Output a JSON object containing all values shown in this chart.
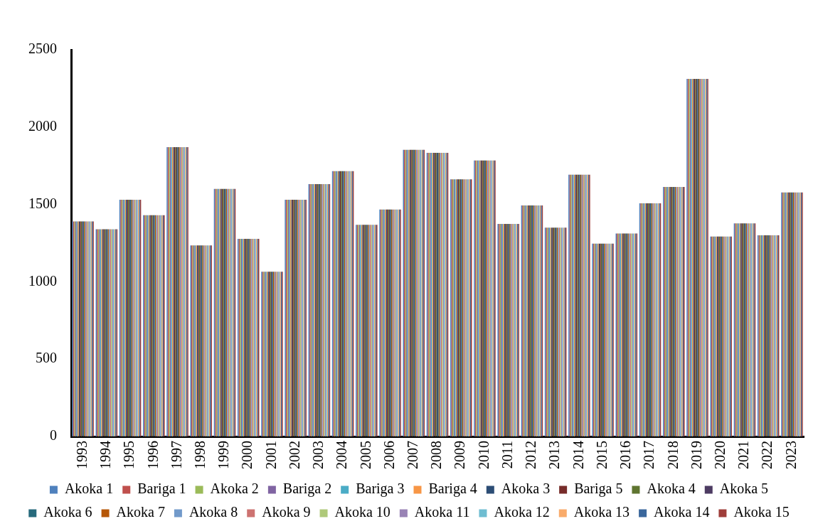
{
  "chart_data": {
    "type": "bar",
    "categories": [
      "1993",
      "1994",
      "1995",
      "1996",
      "1997",
      "1998",
      "1999",
      "2000",
      "2001",
      "2002",
      "2003",
      "2004",
      "2005",
      "2006",
      "2007",
      "2008",
      "2009",
      "2010",
      "2011",
      "2012",
      "2013",
      "2014",
      "2015",
      "2016",
      "2017",
      "2018",
      "2019",
      "2020",
      "2021",
      "2022",
      "2023"
    ],
    "ylim": [
      0,
      2500
    ],
    "yticks": [
      0,
      500,
      1000,
      1500,
      2000,
      2500
    ],
    "grid": false,
    "legend": "bottom",
    "series": [
      {
        "name": "Akoka 1",
        "color": "#4f81bd",
        "values": [
          1390,
          1340,
          1530,
          1430,
          1870,
          1235,
          1600,
          1278,
          1065,
          1530,
          1632,
          1715,
          1368,
          1467,
          1853,
          1834,
          1663,
          1784,
          1374,
          1493,
          1350,
          1692,
          1247,
          1312,
          1507,
          1613,
          2312,
          1292,
          1377,
          1301,
          1578
        ]
      },
      {
        "name": "Bariga 1",
        "color": "#c0504d",
        "values": [
          1390,
          1340,
          1530,
          1430,
          1870,
          1235,
          1600,
          1278,
          1065,
          1530,
          1632,
          1715,
          1368,
          1467,
          1853,
          1834,
          1663,
          1784,
          1374,
          1493,
          1350,
          1692,
          1247,
          1312,
          1507,
          1613,
          2312,
          1292,
          1377,
          1301,
          1578
        ]
      },
      {
        "name": "Akoka 2",
        "color": "#9bbb59",
        "values": [
          1390,
          1340,
          1530,
          1430,
          1870,
          1235,
          1600,
          1278,
          1065,
          1530,
          1632,
          1715,
          1368,
          1467,
          1853,
          1834,
          1663,
          1784,
          1374,
          1493,
          1350,
          1692,
          1247,
          1312,
          1507,
          1613,
          2312,
          1292,
          1377,
          1301,
          1578
        ]
      },
      {
        "name": "Bariga 2",
        "color": "#8064a2",
        "values": [
          1390,
          1340,
          1530,
          1430,
          1870,
          1235,
          1600,
          1278,
          1065,
          1530,
          1632,
          1715,
          1368,
          1467,
          1853,
          1834,
          1663,
          1784,
          1374,
          1493,
          1350,
          1692,
          1247,
          1312,
          1507,
          1613,
          2312,
          1292,
          1377,
          1301,
          1578
        ]
      },
      {
        "name": "Bariga 3",
        "color": "#4bacc6",
        "values": [
          1390,
          1340,
          1530,
          1430,
          1870,
          1235,
          1600,
          1278,
          1065,
          1530,
          1632,
          1715,
          1368,
          1467,
          1853,
          1834,
          1663,
          1784,
          1374,
          1493,
          1350,
          1692,
          1247,
          1312,
          1507,
          1613,
          2312,
          1292,
          1377,
          1301,
          1578
        ]
      },
      {
        "name": "Bariga 4",
        "color": "#f79646",
        "values": [
          1390,
          1340,
          1530,
          1430,
          1870,
          1235,
          1600,
          1278,
          1065,
          1530,
          1632,
          1715,
          1368,
          1467,
          1853,
          1834,
          1663,
          1784,
          1374,
          1493,
          1350,
          1692,
          1247,
          1312,
          1507,
          1613,
          2312,
          1292,
          1377,
          1301,
          1578
        ]
      },
      {
        "name": "Akoka 3",
        "color": "#2c4d75",
        "values": [
          1390,
          1340,
          1530,
          1430,
          1870,
          1235,
          1600,
          1278,
          1065,
          1530,
          1632,
          1715,
          1368,
          1467,
          1853,
          1834,
          1663,
          1784,
          1374,
          1493,
          1350,
          1692,
          1247,
          1312,
          1507,
          1613,
          2312,
          1292,
          1377,
          1301,
          1578
        ]
      },
      {
        "name": "Bariga 5",
        "color": "#772c2a",
        "values": [
          1390,
          1340,
          1530,
          1430,
          1870,
          1235,
          1600,
          1278,
          1065,
          1530,
          1632,
          1715,
          1368,
          1467,
          1853,
          1834,
          1663,
          1784,
          1374,
          1493,
          1350,
          1692,
          1247,
          1312,
          1507,
          1613,
          2312,
          1292,
          1377,
          1301,
          1578
        ]
      },
      {
        "name": "Akoka 4",
        "color": "#5f7530",
        "values": [
          1390,
          1340,
          1530,
          1430,
          1870,
          1235,
          1600,
          1278,
          1065,
          1530,
          1632,
          1715,
          1368,
          1467,
          1853,
          1834,
          1663,
          1784,
          1374,
          1493,
          1350,
          1692,
          1247,
          1312,
          1507,
          1613,
          2312,
          1292,
          1377,
          1301,
          1578
        ]
      },
      {
        "name": "Akoka 5",
        "color": "#4d3b62",
        "values": [
          1390,
          1340,
          1530,
          1430,
          1870,
          1235,
          1600,
          1278,
          1065,
          1530,
          1632,
          1715,
          1368,
          1467,
          1853,
          1834,
          1663,
          1784,
          1374,
          1493,
          1350,
          1692,
          1247,
          1312,
          1507,
          1613,
          2312,
          1292,
          1377,
          1301,
          1578
        ]
      },
      {
        "name": "Akoka 6",
        "color": "#276a7c",
        "values": [
          1390,
          1340,
          1530,
          1430,
          1870,
          1235,
          1600,
          1278,
          1065,
          1530,
          1632,
          1715,
          1368,
          1467,
          1853,
          1834,
          1663,
          1784,
          1374,
          1493,
          1350,
          1692,
          1247,
          1312,
          1507,
          1613,
          2312,
          1292,
          1377,
          1301,
          1578
        ]
      },
      {
        "name": "Akoka 7",
        "color": "#b65708",
        "values": [
          1390,
          1340,
          1530,
          1430,
          1870,
          1235,
          1600,
          1278,
          1065,
          1530,
          1632,
          1715,
          1368,
          1467,
          1853,
          1834,
          1663,
          1784,
          1374,
          1493,
          1350,
          1692,
          1247,
          1312,
          1507,
          1613,
          2312,
          1292,
          1377,
          1301,
          1578
        ]
      },
      {
        "name": "Akoka 8",
        "color": "#729aca",
        "values": [
          1390,
          1340,
          1530,
          1430,
          1870,
          1235,
          1600,
          1278,
          1065,
          1530,
          1632,
          1715,
          1368,
          1467,
          1853,
          1834,
          1663,
          1784,
          1374,
          1493,
          1350,
          1692,
          1247,
          1312,
          1507,
          1613,
          2312,
          1292,
          1377,
          1301,
          1578
        ]
      },
      {
        "name": "Akoka 9",
        "color": "#cd7371",
        "values": [
          1390,
          1340,
          1530,
          1430,
          1870,
          1235,
          1600,
          1278,
          1065,
          1530,
          1632,
          1715,
          1368,
          1467,
          1853,
          1834,
          1663,
          1784,
          1374,
          1493,
          1350,
          1692,
          1247,
          1312,
          1507,
          1613,
          2312,
          1292,
          1377,
          1301,
          1578
        ]
      },
      {
        "name": "Akoka 10",
        "color": "#afc97a",
        "values": [
          1390,
          1340,
          1530,
          1430,
          1870,
          1235,
          1600,
          1278,
          1065,
          1530,
          1632,
          1715,
          1368,
          1467,
          1853,
          1834,
          1663,
          1784,
          1374,
          1493,
          1350,
          1692,
          1247,
          1312,
          1507,
          1613,
          2312,
          1292,
          1377,
          1301,
          1578
        ]
      },
      {
        "name": "Akoka 11",
        "color": "#9983b5",
        "values": [
          1390,
          1340,
          1530,
          1430,
          1870,
          1235,
          1600,
          1278,
          1065,
          1530,
          1632,
          1715,
          1368,
          1467,
          1853,
          1834,
          1663,
          1784,
          1374,
          1493,
          1350,
          1692,
          1247,
          1312,
          1507,
          1613,
          2312,
          1292,
          1377,
          1301,
          1578
        ]
      },
      {
        "name": "Akoka 12",
        "color": "#6fbdd1",
        "values": [
          1390,
          1340,
          1530,
          1430,
          1870,
          1235,
          1600,
          1278,
          1065,
          1530,
          1632,
          1715,
          1368,
          1467,
          1853,
          1834,
          1663,
          1784,
          1374,
          1493,
          1350,
          1692,
          1247,
          1312,
          1507,
          1613,
          2312,
          1292,
          1377,
          1301,
          1578
        ]
      },
      {
        "name": "Akoka 13",
        "color": "#f9ab6b",
        "values": [
          1390,
          1340,
          1530,
          1430,
          1870,
          1235,
          1600,
          1278,
          1065,
          1530,
          1632,
          1715,
          1368,
          1467,
          1853,
          1834,
          1663,
          1784,
          1374,
          1493,
          1350,
          1692,
          1247,
          1312,
          1507,
          1613,
          2312,
          1292,
          1377,
          1301,
          1578
        ]
      },
      {
        "name": "Akoka 14",
        "color": "#3a679c",
        "values": [
          1390,
          1340,
          1530,
          1430,
          1870,
          1235,
          1600,
          1278,
          1065,
          1530,
          1632,
          1715,
          1368,
          1467,
          1853,
          1834,
          1663,
          1784,
          1374,
          1493,
          1350,
          1692,
          1247,
          1312,
          1507,
          1613,
          2312,
          1292,
          1377,
          1301,
          1578
        ]
      },
      {
        "name": "Akoka 15",
        "color": "#9f3e3a",
        "values": [
          1390,
          1340,
          1530,
          1430,
          1870,
          1235,
          1600,
          1278,
          1065,
          1530,
          1632,
          1715,
          1368,
          1467,
          1853,
          1834,
          1663,
          1784,
          1374,
          1493,
          1350,
          1692,
          1247,
          1312,
          1507,
          1613,
          2312,
          1292,
          1377,
          1301,
          1578
        ]
      }
    ]
  }
}
